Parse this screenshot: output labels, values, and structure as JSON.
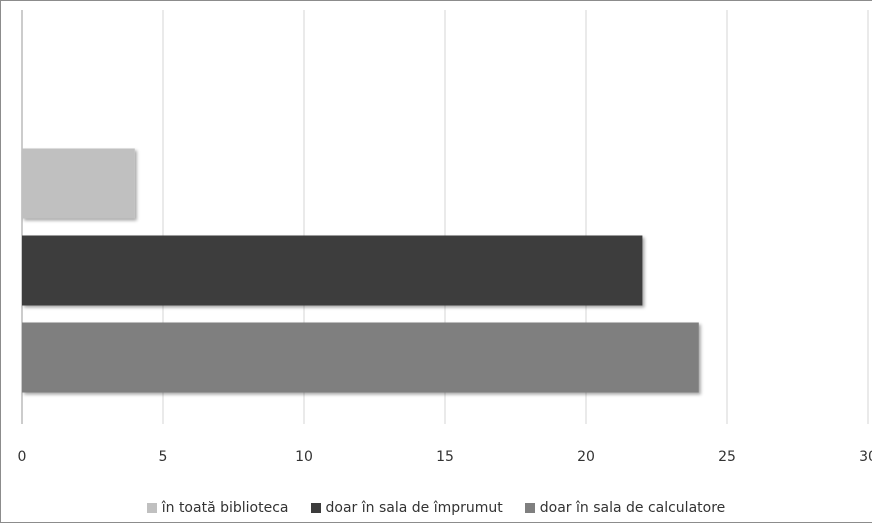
{
  "chart_data": {
    "type": "bar",
    "orientation": "horizontal",
    "title": "",
    "xlabel": "",
    "ylabel": "",
    "xlim": [
      0,
      30
    ],
    "x_ticks": [
      "0",
      "5",
      "10",
      "15",
      "20",
      "25",
      "30"
    ],
    "grid": "vertical",
    "legend_position": "bottom",
    "series": [
      {
        "name": "în toată biblioteca",
        "value": 4,
        "color": "#c0c0c0"
      },
      {
        "name": "doar în sala de împrumut",
        "value": 22,
        "color": "#3c3c3c"
      },
      {
        "name": "doar în sala de calculatore",
        "value": 24,
        "color": "#7f7f7f"
      }
    ]
  }
}
